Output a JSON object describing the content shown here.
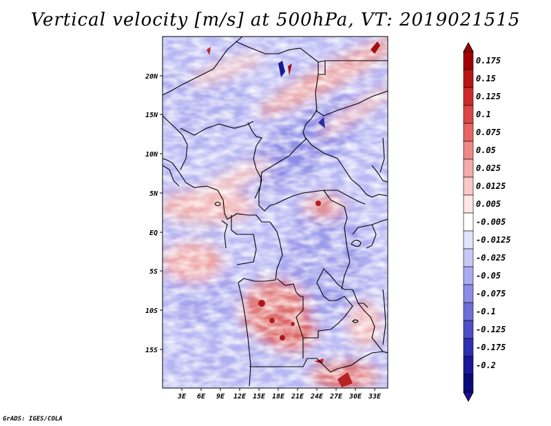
{
  "title": "Vertical velocity [m/s] at 500hPa, VT: 2019021515",
  "credit": "GrADS: IGES/COLA",
  "axes": {
    "lat_labels": [
      "20N",
      "15N",
      "10N",
      "5N",
      "EQ",
      "5S",
      "10S",
      "15S"
    ],
    "lon_labels": [
      "3E",
      "6E",
      "9E",
      "12E",
      "15E",
      "18E",
      "21E",
      "24E",
      "27E",
      "30E",
      "33E"
    ]
  },
  "colorbar": {
    "labels": [
      "0.175",
      "0.15",
      "0.125",
      "0.1",
      "0.075",
      "0.05",
      "0.025",
      "0.0125",
      "0.005",
      "-0.005",
      "-0.0125",
      "-0.025",
      "-0.05",
      "-0.075",
      "-0.1",
      "-0.125",
      "-0.175",
      "-0.2"
    ],
    "colors": [
      "#a00000",
      "#b81414",
      "#cc2a2a",
      "#dc4646",
      "#e86464",
      "#f08888",
      "#f6aaaa",
      "#fac8c8",
      "#fde6e6",
      "#ffffff",
      "#e2e2fb",
      "#c8c8f6",
      "#aaaaf0",
      "#8c8ce6",
      "#6e6ed8",
      "#4e4ec6",
      "#2e2eb0",
      "#181898",
      "#0a0a7a"
    ],
    "top_arrow_color": "#a00000",
    "bottom_arrow_color": "#1e0ea0"
  }
}
